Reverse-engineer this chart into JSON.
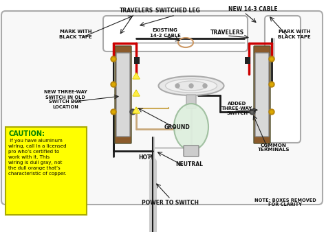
{
  "bg_color": "#ffffff",
  "labels": {
    "travelers_left": "TRAVELERS",
    "switched_leg": "SWITCHED LEG",
    "new_cable": "NEW 14-3 CABLE",
    "mark_black_left": "MARK WITH\nBLACK TAPE",
    "existing_cable": "EXISTING\n14-2 CABLE",
    "travelers_right": "TRAVELERS",
    "mark_black_right": "MARK WITH\nBLACK TAPE",
    "new_switch": "NEW THREE-WAY\nSWITCH IN OLD\nSWITCH BOX\nLOCATION",
    "ground": "GROUND",
    "added_switch": "ADDED\nTHREE-WAY\nSWITCH",
    "hot": "HOT",
    "neutral": "NEUTRAL",
    "power_to_switch": "POWER TO SWITCH",
    "common_terminals": "COMMON\nTERMINALS",
    "note": "NOTE: BOXES REMOVED\nFOR CLARITY"
  },
  "caution_title": "CAUTION:",
  "caution_body": " If you have aluminum\nwiring, call in a licensed\npro who’s certified to\nwork with it. This\nwiring is dull gray, not\nthe dull orange that’s\ncharacteristic of copper.",
  "caution_bg": "#ffff00",
  "caution_color": "#000000",
  "caution_title_color": "#008000"
}
